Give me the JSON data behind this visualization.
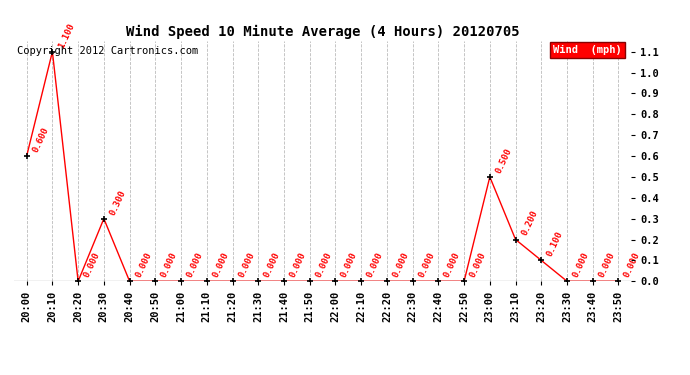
{
  "title": "Wind Speed 10 Minute Average (4 Hours) 20120705",
  "copyright_text": "Copyright 2012 Cartronics.com",
  "legend_label": "Wind  (mph)",
  "x_labels": [
    "20:00",
    "20:10",
    "20:20",
    "20:30",
    "20:40",
    "20:50",
    "21:00",
    "21:10",
    "21:20",
    "21:30",
    "21:40",
    "21:50",
    "22:00",
    "22:10",
    "22:20",
    "22:30",
    "22:40",
    "22:50",
    "23:00",
    "23:10",
    "23:20",
    "23:30",
    "23:40",
    "23:50"
  ],
  "y_values": [
    0.6,
    1.1,
    0.0,
    0.3,
    0.0,
    0.0,
    0.0,
    0.0,
    0.0,
    0.0,
    0.0,
    0.0,
    0.0,
    0.0,
    0.0,
    0.0,
    0.0,
    0.0,
    0.5,
    0.2,
    0.1,
    0.0,
    0.0,
    0.0
  ],
  "ylim": [
    0.0,
    1.15
  ],
  "yticks": [
    0.0,
    0.1,
    0.2,
    0.3,
    0.4,
    0.5,
    0.6,
    0.7,
    0.8,
    0.9,
    1.0,
    1.1
  ],
  "line_color": "#ff0000",
  "marker_color": "#000000",
  "annotation_color": "#ff0000",
  "background_color": "#ffffff",
  "grid_color": "#bbbbbb",
  "legend_bg": "#ff0000",
  "legend_text_color": "#ffffff",
  "title_fontsize": 10,
  "annotation_fontsize": 6.5,
  "tick_fontsize": 7.5,
  "copyright_fontsize": 7.5
}
